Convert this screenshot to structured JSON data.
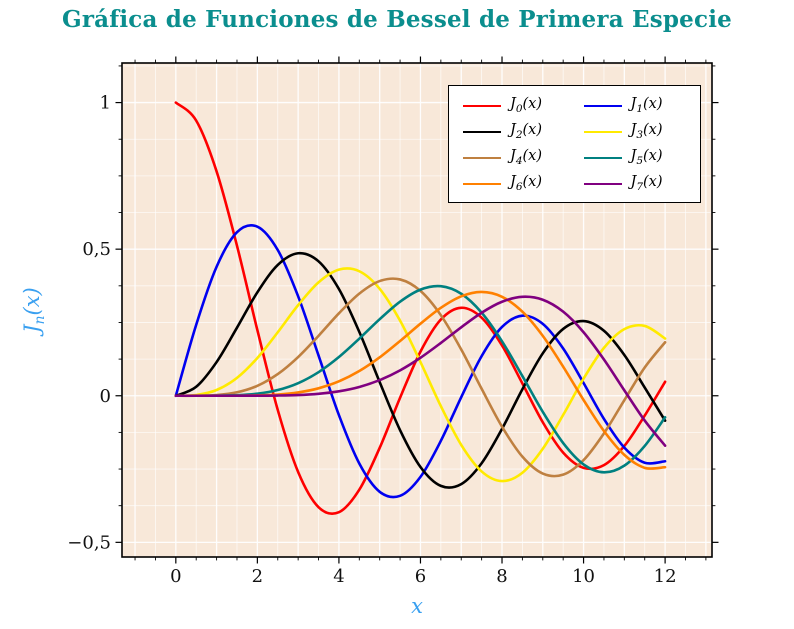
{
  "title": {
    "text": "Gráfica de Funciones de Bessel de Primera Especie",
    "color": "#0b8e8e"
  },
  "axis_label_color": "#3aa0f0",
  "chart_data": {
    "type": "line",
    "title": "Gráfica de Funciones de Bessel de Primera Especie",
    "xlabel": "x",
    "ylabel": "J_n(x)",
    "ylabel_parts": {
      "base": "J",
      "sub": "n",
      "rest": "(x)"
    },
    "xlim": [
      -1.32,
      13.15
    ],
    "ylim": [
      -0.55,
      1.135
    ],
    "background": "#f8e8d9",
    "grid": {
      "on": true,
      "color": "#ffffff",
      "minor_x_step": 0.5,
      "minor_y_step": 0.125
    },
    "legend_position": "top-right",
    "legend": {
      "prefix": "J",
      "arg": "(x)"
    },
    "x_ticks": [
      {
        "v": 0,
        "label": "0"
      },
      {
        "v": 2,
        "label": "2"
      },
      {
        "v": 4,
        "label": "4"
      },
      {
        "v": 6,
        "label": "6"
      },
      {
        "v": 8,
        "label": "8"
      },
      {
        "v": 10,
        "label": "10"
      },
      {
        "v": 12,
        "label": "12"
      }
    ],
    "y_ticks": [
      {
        "v": 1,
        "label": "1"
      },
      {
        "v": 0.5,
        "label": "0,5"
      },
      {
        "v": 0,
        "label": "0"
      },
      {
        "v": -0.5,
        "label": "−0,5"
      }
    ],
    "x": [
      0,
      0.5,
      1,
      1.5,
      2,
      2.5,
      3,
      3.5,
      4,
      4.5,
      5,
      5.5,
      6,
      6.5,
      7,
      7.5,
      8,
      8.5,
      9,
      9.5,
      10,
      10.5,
      11,
      11.5,
      12
    ],
    "series": [
      {
        "name": "J_0(x)",
        "order": 0,
        "color": "#fe0000",
        "values": [
          1,
          0.9385,
          0.7652,
          0.5118,
          0.2239,
          -0.0484,
          -0.2601,
          -0.3801,
          -0.3971,
          -0.3205,
          -0.1776,
          -0.0068,
          0.1506,
          0.2601,
          0.3001,
          0.2663,
          0.1717,
          0.0419,
          -0.0903,
          -0.1939,
          -0.2459,
          -0.2366,
          -0.1712,
          -0.0677,
          0.0477
        ]
      },
      {
        "name": "J_1(x)",
        "order": 1,
        "color": "#0000f0",
        "values": [
          0,
          0.2423,
          0.4401,
          0.5579,
          0.5767,
          0.4971,
          0.3391,
          0.1374,
          -0.066,
          -0.2311,
          -0.3276,
          -0.3414,
          -0.2767,
          -0.1538,
          -0.0047,
          0.1352,
          0.2346,
          0.2731,
          0.2453,
          0.1613,
          0.0435,
          -0.0789,
          -0.1768,
          -0.2284,
          -0.2234
        ]
      },
      {
        "name": "J_2(x)",
        "order": 2,
        "color": "#000000",
        "values": [
          0,
          0.0306,
          0.1149,
          0.2321,
          0.3528,
          0.4461,
          0.4861,
          0.4586,
          0.3641,
          0.2178,
          0.0466,
          -0.1173,
          -0.2429,
          -0.3074,
          -0.3014,
          -0.2303,
          -0.113,
          0.0223,
          0.1448,
          0.2279,
          0.2546,
          0.2216,
          0.139,
          0.0279,
          -0.0849
        ]
      },
      {
        "name": "J_3(x)",
        "order": 3,
        "color": "#ffea00",
        "values": [
          0,
          0.0026,
          0.0196,
          0.061,
          0.1289,
          0.2166,
          0.3091,
          0.3868,
          0.4302,
          0.4247,
          0.3648,
          0.2561,
          0.1148,
          -0.0353,
          -0.1676,
          -0.2581,
          -0.2911,
          -0.2626,
          -0.1809,
          -0.0653,
          0.0584,
          0.1633,
          0.2273,
          0.2381,
          0.1951
        ]
      },
      {
        "name": "J_4(x)",
        "order": 4,
        "color": "#bf8040",
        "values": [
          0,
          0.0002,
          0.0025,
          0.0118,
          0.034,
          0.0738,
          0.132,
          0.2044,
          0.2811,
          0.3484,
          0.3912,
          0.3967,
          0.3576,
          0.2748,
          0.1578,
          0.0238,
          -0.1054,
          -0.2077,
          -0.2655,
          -0.2691,
          -0.2196,
          -0.1283,
          -0.015,
          0.0963,
          0.1825
        ]
      },
      {
        "name": "J_5(x)",
        "order": 5,
        "color": "#008080",
        "values": [
          0,
          0,
          0.0002,
          0.0018,
          0.007,
          0.0195,
          0.043,
          0.0804,
          0.1321,
          0.1947,
          0.2611,
          0.3209,
          0.3621,
          0.3736,
          0.3479,
          0.2835,
          0.1858,
          0.0671,
          -0.055,
          -0.1613,
          -0.2341,
          -0.2611,
          -0.2383,
          -0.1711,
          -0.0735
        ]
      },
      {
        "name": "J_6(x)",
        "order": 6,
        "color": "#ff8000",
        "values": [
          0,
          0,
          0,
          0.0002,
          0.0012,
          0.0042,
          0.0114,
          0.0254,
          0.0491,
          0.0843,
          0.131,
          0.1868,
          0.2458,
          0.2999,
          0.3392,
          0.3541,
          0.3376,
          0.2867,
          0.2043,
          0.0993,
          -0.0145,
          -0.1203,
          -0.2016,
          -0.2458,
          -0.2437
        ]
      },
      {
        "name": "J_7(x)",
        "order": 7,
        "color": "#800080",
        "values": [
          0,
          0,
          0,
          0,
          0.0002,
          0.0008,
          0.0025,
          0.0067,
          0.0152,
          0.03,
          0.0534,
          0.0866,
          0.1296,
          0.1801,
          0.2336,
          0.2832,
          0.3206,
          0.3376,
          0.3275,
          0.2868,
          0.2167,
          0.1236,
          0.0184,
          -0.0846,
          -0.1703
        ]
      }
    ]
  }
}
